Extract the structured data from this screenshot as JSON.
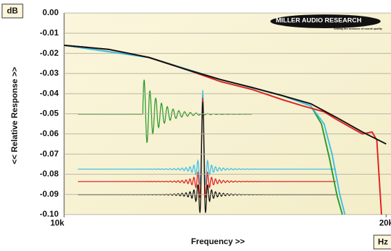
{
  "chart_data": {
    "type": "line",
    "y_label": "<< Relative Response >>",
    "x_label": "Frequency >>",
    "y_unit": "dB",
    "x_unit": "Hz",
    "brand": "MILLER AUDIO RESEARCH",
    "tagline": "Setting the measure of sound quality",
    "log_x": true,
    "grid": true,
    "xlim": [
      10000,
      20000
    ],
    "xticks": [
      {
        "value": 10000,
        "label": "10k"
      },
      {
        "value": 20000,
        "label": "20k"
      }
    ],
    "ylim": [
      -0.1,
      0
    ],
    "yticks": [
      {
        "value": 0,
        "label": "0.00"
      },
      {
        "value": -0.01,
        "label": "-0.01"
      },
      {
        "value": -0.02,
        "label": "-0.02"
      },
      {
        "value": -0.03,
        "label": "-0.03"
      },
      {
        "value": -0.04,
        "label": "-0.04"
      },
      {
        "value": -0.05,
        "label": "-0.05"
      },
      {
        "value": -0.06,
        "label": "-0.06"
      },
      {
        "value": -0.07,
        "label": "-0.07"
      },
      {
        "value": -0.08,
        "label": "-0.08"
      },
      {
        "value": -0.09,
        "label": "-0.09"
      },
      {
        "value": -0.1,
        "label": "-0.10"
      }
    ],
    "series": [
      {
        "color": "#2a9a2a",
        "x": [
          10000,
          12000,
          14000,
          16000,
          17000,
          17400,
          17700,
          18000,
          18200
        ],
        "values": [
          -0.016,
          -0.022,
          -0.033,
          -0.041,
          -0.046,
          -0.055,
          -0.072,
          -0.091,
          -0.1
        ]
      },
      {
        "color": "#3cc0e8",
        "x": [
          10000,
          12000,
          14000,
          16000,
          17000,
          17500,
          17800,
          18100,
          18300
        ],
        "values": [
          -0.016,
          -0.022,
          -0.033,
          -0.041,
          -0.046,
          -0.055,
          -0.07,
          -0.09,
          -0.1
        ]
      },
      {
        "color": "#e02020",
        "x": [
          10000,
          11000,
          12000,
          13000,
          14000,
          15000,
          16000,
          16700,
          17500,
          18000,
          19000,
          19400,
          19600,
          19800
        ],
        "values": [
          -0.016,
          -0.018,
          -0.022,
          -0.028,
          -0.034,
          -0.038,
          -0.043,
          -0.046,
          -0.049,
          -0.053,
          -0.06,
          -0.059,
          -0.063,
          -0.1
        ]
      },
      {
        "color": "#111111",
        "x": [
          10000,
          11000,
          12000,
          13000,
          14000,
          15000,
          16000,
          17000,
          18000,
          19000,
          20000
        ],
        "values": [
          -0.016,
          -0.018,
          -0.022,
          -0.028,
          -0.033,
          -0.037,
          -0.041,
          -0.045,
          -0.052,
          -0.059,
          -0.065
        ]
      }
    ]
  }
}
